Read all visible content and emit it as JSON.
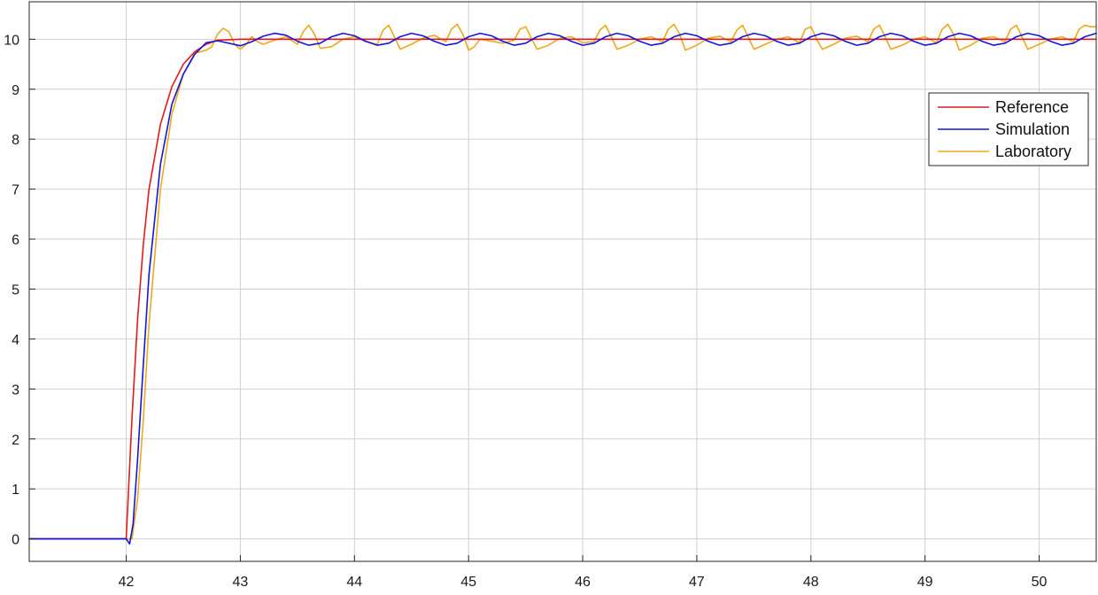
{
  "chart_data": {
    "type": "line",
    "title": "",
    "xlabel": "",
    "ylabel": "",
    "xlim": [
      41.15,
      50.5
    ],
    "ylim": [
      -0.45,
      10.75
    ],
    "x_ticks": [
      42,
      43,
      44,
      45,
      46,
      47,
      48,
      49,
      50
    ],
    "y_ticks": [
      0,
      1,
      2,
      3,
      4,
      5,
      6,
      7,
      8,
      9,
      10
    ],
    "grid": true,
    "legend_position": "top-right",
    "series": [
      {
        "name": "Reference",
        "color": "#e41a1c",
        "x": [
          41.15,
          42.0,
          42.05,
          42.1,
          42.15,
          42.2,
          42.3,
          42.4,
          42.5,
          42.6,
          42.7,
          42.8,
          43.0,
          50.5
        ],
        "y": [
          0,
          0,
          2.4,
          4.4,
          5.9,
          7.0,
          8.3,
          9.05,
          9.5,
          9.75,
          9.9,
          9.98,
          10.0,
          10.0
        ]
      },
      {
        "name": "Simulation",
        "color": "#1515e0",
        "x": [
          41.15,
          42.0,
          42.03,
          42.06,
          42.1,
          42.15,
          42.2,
          42.3,
          42.4,
          42.5,
          42.6,
          42.7,
          42.8,
          42.9,
          43.0,
          43.1,
          43.2,
          43.3,
          43.4,
          43.5,
          43.6,
          43.7,
          43.8,
          43.9,
          44.0,
          44.1,
          44.2,
          44.3,
          44.4,
          44.5,
          44.6,
          44.7,
          44.8,
          44.9,
          45.0,
          45.1,
          45.2,
          45.3,
          45.4,
          45.5,
          45.6,
          45.7,
          45.8,
          45.9,
          46.0,
          46.1,
          46.2,
          46.3,
          46.4,
          46.5,
          46.6,
          46.7,
          46.8,
          46.9,
          47.0,
          47.1,
          47.2,
          47.3,
          47.4,
          47.5,
          47.6,
          47.7,
          47.8,
          47.9,
          48.0,
          48.1,
          48.2,
          48.3,
          48.4,
          48.5,
          48.6,
          48.7,
          48.8,
          48.9,
          49.0,
          49.1,
          49.2,
          49.3,
          49.4,
          49.5,
          49.6,
          49.7,
          49.8,
          49.9,
          50.0,
          50.1,
          50.2,
          50.3,
          50.4,
          50.5
        ],
        "y": [
          0,
          0,
          -0.1,
          0.3,
          1.6,
          3.5,
          5.3,
          7.5,
          8.7,
          9.3,
          9.7,
          9.93,
          9.97,
          9.92,
          9.87,
          9.95,
          10.06,
          10.12,
          10.08,
          9.96,
          9.88,
          9.92,
          10.05,
          10.12,
          10.07,
          9.96,
          9.88,
          9.92,
          10.05,
          10.12,
          10.07,
          9.96,
          9.88,
          9.92,
          10.05,
          10.12,
          10.07,
          9.96,
          9.88,
          9.92,
          10.05,
          10.12,
          10.07,
          9.96,
          9.88,
          9.92,
          10.05,
          10.12,
          10.07,
          9.96,
          9.88,
          9.92,
          10.05,
          10.12,
          10.07,
          9.96,
          9.88,
          9.92,
          10.05,
          10.12,
          10.07,
          9.96,
          9.88,
          9.92,
          10.05,
          10.12,
          10.07,
          9.96,
          9.88,
          9.92,
          10.05,
          10.12,
          10.07,
          9.96,
          9.88,
          9.92,
          10.05,
          10.12,
          10.07,
          9.96,
          9.88,
          9.92,
          10.05,
          10.12,
          10.07,
          9.96,
          9.88,
          9.92,
          10.05,
          10.12
        ]
      },
      {
        "name": "Laboratory",
        "color": "#eda91c",
        "x": [
          41.15,
          42.05,
          42.1,
          42.15,
          42.2,
          42.3,
          42.4,
          42.5,
          42.6,
          42.7,
          42.75,
          42.8,
          42.85,
          42.9,
          42.95,
          43.0,
          43.05,
          43.1,
          43.15,
          43.2,
          43.3,
          43.4,
          43.5,
          43.55,
          43.6,
          43.65,
          43.7,
          43.8,
          43.9,
          44.0,
          44.1,
          44.2,
          44.25,
          44.3,
          44.35,
          44.4,
          44.5,
          44.6,
          44.7,
          44.8,
          44.85,
          44.9,
          44.95,
          45.0,
          45.05,
          45.1,
          45.2,
          45.3,
          45.4,
          45.45,
          45.5,
          45.55,
          45.6,
          45.7,
          45.8,
          45.9,
          46.0,
          46.1,
          46.15,
          46.2,
          46.25,
          46.3,
          46.4,
          46.5,
          46.6,
          46.7,
          46.75,
          46.8,
          46.85,
          46.9,
          47.0,
          47.1,
          47.2,
          47.3,
          47.35,
          47.4,
          47.45,
          47.5,
          47.6,
          47.7,
          47.8,
          47.9,
          47.95,
          48.0,
          48.05,
          48.1,
          48.2,
          48.3,
          48.4,
          48.5,
          48.55,
          48.6,
          48.65,
          48.7,
          48.8,
          48.9,
          49.0,
          49.1,
          49.15,
          49.2,
          49.25,
          49.3,
          49.4,
          49.5,
          49.6,
          49.7,
          49.75,
          49.8,
          49.85,
          49.9,
          50.0,
          50.1,
          50.2,
          50.3,
          50.35,
          50.4,
          50.45,
          50.5
        ],
        "y": [
          0,
          0,
          0.8,
          2.4,
          4.3,
          7.0,
          8.5,
          9.3,
          9.72,
          9.78,
          9.85,
          10.1,
          10.22,
          10.15,
          9.9,
          9.8,
          9.9,
          10.05,
          9.95,
          9.9,
          9.98,
          10.05,
          9.9,
          10.15,
          10.28,
          10.1,
          9.82,
          9.85,
          10.0,
          10.05,
          9.95,
          9.9,
          10.18,
          10.28,
          10.05,
          9.8,
          9.9,
          10.02,
          10.08,
          9.95,
          10.2,
          10.3,
          10.1,
          9.78,
          9.85,
          10.0,
          9.96,
          9.92,
          9.98,
          10.2,
          10.25,
          10.02,
          9.8,
          9.88,
          10.02,
          10.05,
          9.93,
          9.95,
          10.18,
          10.28,
          10.05,
          9.8,
          9.88,
          10.0,
          10.05,
          9.95,
          10.2,
          10.3,
          10.1,
          9.78,
          9.88,
          10.02,
          10.06,
          9.95,
          10.18,
          10.28,
          10.05,
          9.8,
          9.9,
          10.0,
          10.05,
          9.93,
          10.2,
          10.25,
          10.0,
          9.8,
          9.9,
          10.02,
          10.06,
          9.95,
          10.2,
          10.28,
          10.05,
          9.8,
          9.88,
          10.0,
          10.05,
          9.93,
          10.2,
          10.3,
          10.1,
          9.78,
          9.88,
          10.02,
          10.05,
          9.95,
          10.2,
          10.28,
          10.05,
          9.8,
          9.9,
          10.0,
          10.05,
          9.95,
          10.2,
          10.28,
          10.25,
          10.25
        ]
      }
    ]
  }
}
